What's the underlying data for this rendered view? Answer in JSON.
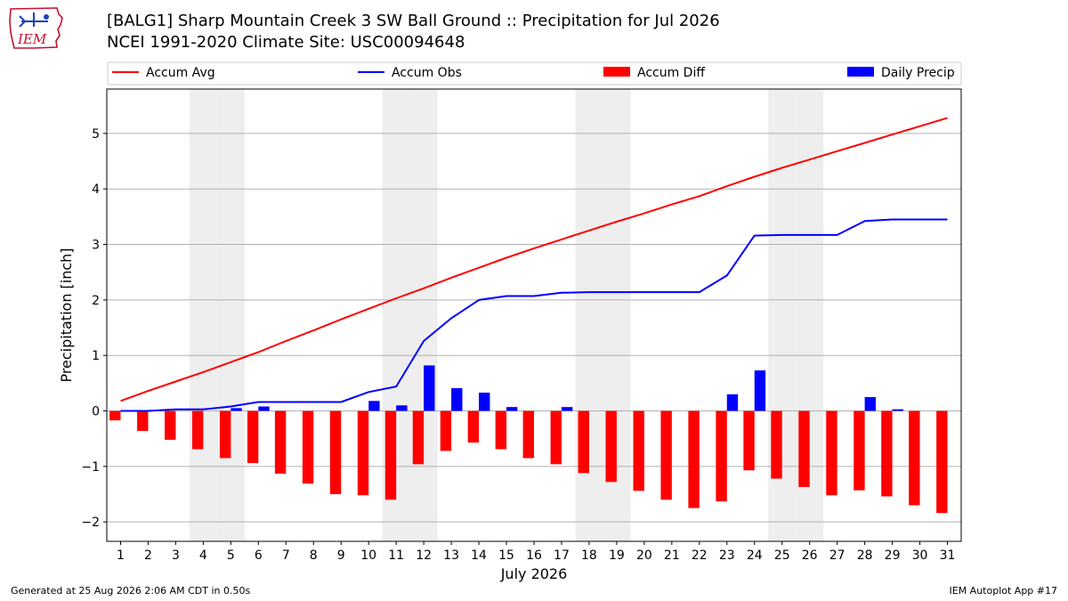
{
  "header": {
    "logo_text": "IEM",
    "title_line1": "[BALG1] Sharp Mountain Creek 3 SW Ball Ground :: Precipitation for Jul 2026",
    "title_line2": "NCEI 1991-2020 Climate Site: USC00094648"
  },
  "footer": {
    "left": "Generated at 25 Aug 2026 2:06 AM CDT in 0.50s",
    "right": "IEM Autoplot App #17"
  },
  "colors": {
    "accum_avg": "#ff0000",
    "accum_obs": "#0000ff",
    "accum_diff": "#ff0000",
    "daily_precip": "#0000ff",
    "weekend_shade": "#eeeeee",
    "grid": "#b0b0b0",
    "logo": "#c8102e"
  },
  "chart_data": {
    "type": "bar",
    "xlabel": "July 2026",
    "ylabel": "Precipitation [inch]",
    "x": [
      1,
      2,
      3,
      4,
      5,
      6,
      7,
      8,
      9,
      10,
      11,
      12,
      13,
      14,
      15,
      16,
      17,
      18,
      19,
      20,
      21,
      22,
      23,
      24,
      25,
      26,
      27,
      28,
      29,
      30,
      31
    ],
    "xlim": [
      0.5,
      31.5
    ],
    "ylim": [
      -2.35,
      5.8
    ],
    "yticks": [
      -2,
      -1,
      0,
      1,
      2,
      3,
      4,
      5
    ],
    "ytick_labels": [
      "−2",
      "−1",
      "0",
      "1",
      "2",
      "3",
      "4",
      "5"
    ],
    "grid": "y",
    "legend": {
      "placement": "top",
      "entries": [
        "Accum Avg",
        "Accum Obs",
        "Accum Diff",
        "Daily Precip"
      ]
    },
    "weekend_days": [
      4,
      5,
      11,
      12,
      18,
      19,
      25,
      26
    ],
    "series": [
      {
        "name": "Accum Avg",
        "kind": "line",
        "values": [
          0.18,
          0.36,
          0.53,
          0.7,
          0.88,
          1.06,
          1.26,
          1.45,
          1.65,
          1.84,
          2.03,
          2.21,
          2.4,
          2.58,
          2.76,
          2.93,
          3.09,
          3.25,
          3.41,
          3.56,
          3.72,
          3.87,
          4.05,
          4.22,
          4.38,
          4.53,
          4.68,
          4.83,
          4.98,
          5.13,
          5.28
        ]
      },
      {
        "name": "Accum Obs",
        "kind": "line",
        "values": [
          0.0,
          0.0,
          0.03,
          0.03,
          0.08,
          0.16,
          0.16,
          0.16,
          0.16,
          0.34,
          0.44,
          1.26,
          1.67,
          2.0,
          2.07,
          2.07,
          2.13,
          2.14,
          2.14,
          2.14,
          2.14,
          2.14,
          2.44,
          3.16,
          3.17,
          3.17,
          3.17,
          3.42,
          3.45,
          3.45,
          3.45
        ]
      },
      {
        "name": "Accum Diff",
        "kind": "bar",
        "values": [
          -0.17,
          -0.36,
          -0.52,
          -0.69,
          -0.85,
          -0.94,
          -1.13,
          -1.31,
          -1.5,
          -1.52,
          -1.6,
          -0.96,
          -0.72,
          -0.57,
          -0.69,
          -0.85,
          -0.96,
          -1.12,
          -1.28,
          -1.44,
          -1.6,
          -1.75,
          -1.63,
          -1.07,
          -1.22,
          -1.37,
          -1.52,
          -1.43,
          -1.54,
          -1.7,
          -1.84
        ]
      },
      {
        "name": "Daily Precip",
        "kind": "bar",
        "values": [
          0.0,
          0.0,
          0.0,
          0.0,
          0.05,
          0.08,
          0.0,
          0.0,
          0.0,
          0.18,
          0.1,
          0.82,
          0.41,
          0.33,
          0.07,
          0.0,
          0.07,
          0.0,
          0.0,
          0.0,
          0.0,
          0.0,
          0.3,
          0.73,
          0.0,
          0.0,
          0.0,
          0.25,
          0.03,
          0.0,
          0.0
        ]
      }
    ]
  }
}
